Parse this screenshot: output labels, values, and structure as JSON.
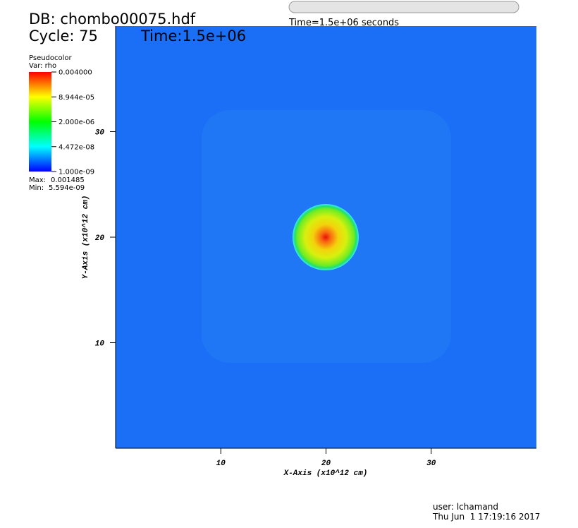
{
  "chart_data": {
    "type": "pseudocolor",
    "db_title": "DB: chombo00075.hdf",
    "cycle": "Cycle: 75",
    "time": "Time:1.5e+06",
    "slider_label": "Time=1.5e+06 seconds",
    "legend_title": "Pseudocolor",
    "legend_var": "Var: rho",
    "max_label": "Max:",
    "max": 0.001485,
    "min_label": "Min:",
    "min": {
      "value": 5.594e-09,
      "label": "5.594e-09"
    },
    "colorbar_lim": [
      1e-09,
      0.004
    ],
    "colorbar_log": true,
    "colorbar_ticks": [
      {
        "value": 0.004,
        "label": "0.004000"
      },
      {
        "value": 8.944e-05,
        "label": "8.944e-05"
      },
      {
        "value": 2e-06,
        "label": "2.000e-06"
      },
      {
        "value": 4.472e-08,
        "label": "4.472e-08"
      },
      {
        "value": 1e-09,
        "label": "1.000e-09"
      }
    ],
    "xlabel": "X-Axis (x10^12 cm)",
    "ylabel": "Y-Axis (x10^12 cm)",
    "xlim": [
      0,
      40
    ],
    "ylim": [
      0,
      40
    ],
    "xticks": [
      10,
      20,
      30
    ],
    "yticks": [
      10,
      20,
      30
    ],
    "user": "user: lchamand",
    "date": "Thu Jun  1 17:19:16 2017"
  }
}
